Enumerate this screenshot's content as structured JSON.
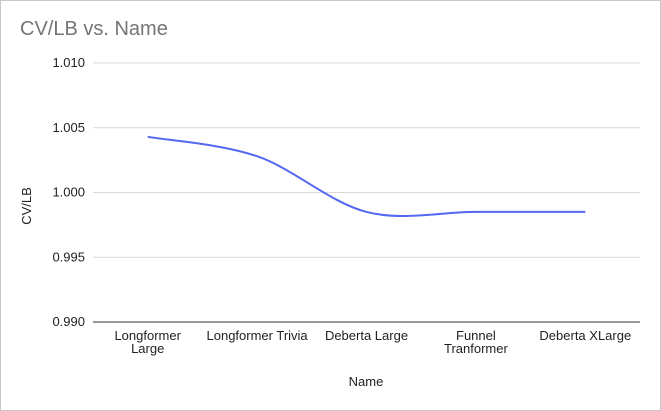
{
  "chart_data": {
    "type": "line",
    "title": "CV/LB vs. Name",
    "xlabel": "Name",
    "ylabel": "CV/LB",
    "categories": [
      "Longformer Large",
      "Longformer Trivia",
      "Deberta Large",
      "Funnel Tranformer",
      "Deberta XLarge"
    ],
    "category_lines": [
      [
        "Longformer",
        "Large"
      ],
      [
        "Longformer Trivia"
      ],
      [
        "Deberta Large"
      ],
      [
        "Funnel",
        "Tranformer"
      ],
      [
        "Deberta XLarge"
      ]
    ],
    "series": [
      {
        "values": [
          1.0043,
          1.0028,
          0.9985,
          0.9985,
          0.9985
        ],
        "color": "#5468f0"
      }
    ],
    "ylim": [
      0.99,
      1.01
    ],
    "yticks": [
      "0.990",
      "0.995",
      "1.000",
      "1.005",
      "1.010"
    ],
    "grid": true,
    "legend": "none"
  }
}
